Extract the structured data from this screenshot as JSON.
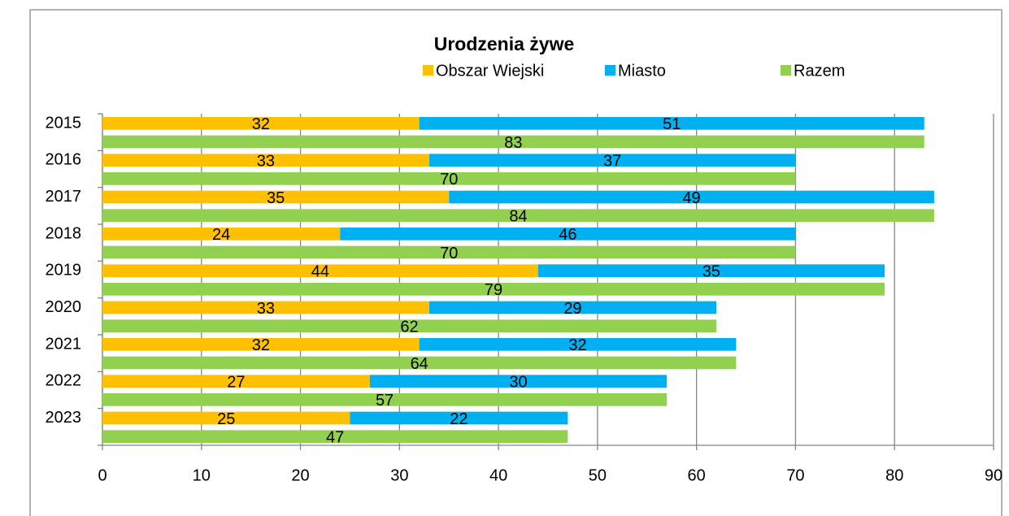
{
  "chart_data": {
    "type": "bar",
    "orientation": "horizontal",
    "title": "Urodzenia żywe",
    "categories": [
      "2015",
      "2016",
      "2017",
      "2018",
      "2019",
      "2020",
      "2021",
      "2022",
      "2023"
    ],
    "series": [
      {
        "name": "Obszar Wiejski",
        "color": "#ffc000",
        "values": [
          32,
          33,
          35,
          24,
          44,
          33,
          32,
          27,
          25
        ]
      },
      {
        "name": "Miasto",
        "color": "#00b0f0",
        "values": [
          51,
          37,
          49,
          46,
          35,
          29,
          32,
          30,
          22
        ]
      },
      {
        "name": "Razem",
        "color": "#92d050",
        "values": [
          83,
          70,
          84,
          70,
          79,
          62,
          64,
          57,
          47
        ]
      }
    ],
    "stack_groups": [
      [
        0,
        1
      ],
      [
        2
      ]
    ],
    "xlim": [
      0,
      90
    ],
    "xticks": [
      0,
      10,
      20,
      30,
      40,
      50,
      60,
      70,
      80,
      90
    ],
    "grid": true,
    "legend": "top"
  }
}
